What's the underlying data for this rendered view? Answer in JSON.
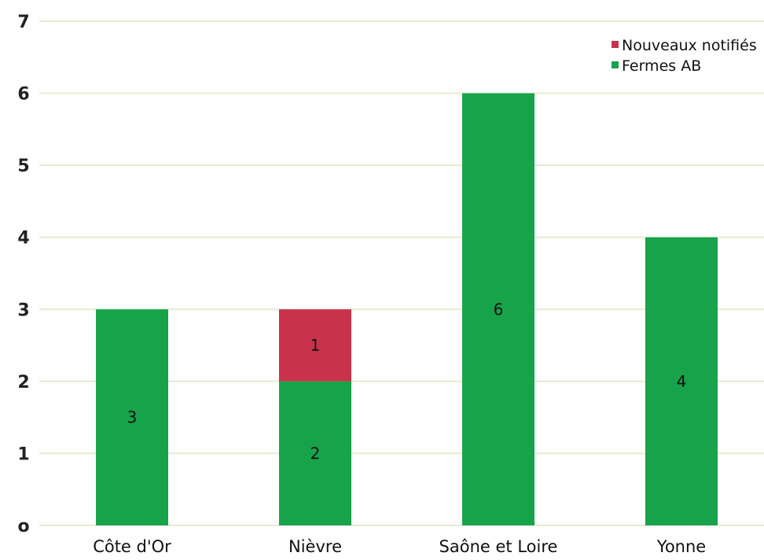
{
  "chart_data": {
    "type": "bar",
    "stacked": true,
    "categories": [
      "Côte d'Or",
      "Nièvre",
      "Saône et Loire",
      "Yonne"
    ],
    "series": [
      {
        "name": "Fermes AB",
        "values": [
          3,
          2,
          6,
          4
        ],
        "color": "#17a34a"
      },
      {
        "name": "Nouveaux notifiés",
        "values": [
          0,
          1,
          0,
          0
        ],
        "color": "#c8324a"
      }
    ],
    "ylim": [
      0,
      7
    ],
    "yticks": [
      0,
      1,
      2,
      3,
      4,
      5,
      6,
      7
    ],
    "ytick_labels": [
      "o",
      "1",
      "2",
      "3",
      "4",
      "5",
      "6",
      "7"
    ],
    "grid": true,
    "grid_color": "#e6ecd2",
    "legend_position": "top-right",
    "title": "",
    "xlabel": "",
    "ylabel": ""
  }
}
